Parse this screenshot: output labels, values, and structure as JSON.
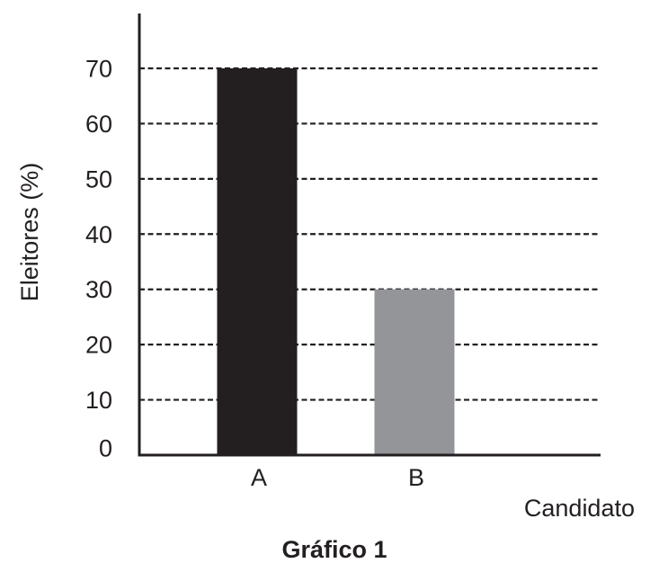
{
  "chart_data": {
    "type": "bar",
    "categories": [
      "A",
      "B"
    ],
    "values": [
      70,
      30
    ],
    "colors": [
      "#231f20",
      "#939598"
    ],
    "title": "Gráfico 1",
    "xlabel": "Candidato",
    "ylabel": "Eleitores (%)",
    "ylim": [
      0,
      70
    ],
    "yticks": [
      0,
      10,
      20,
      30,
      40,
      50,
      60,
      70
    ],
    "grid": true,
    "grid_style": "dashed",
    "axis_color": "#231f20"
  }
}
